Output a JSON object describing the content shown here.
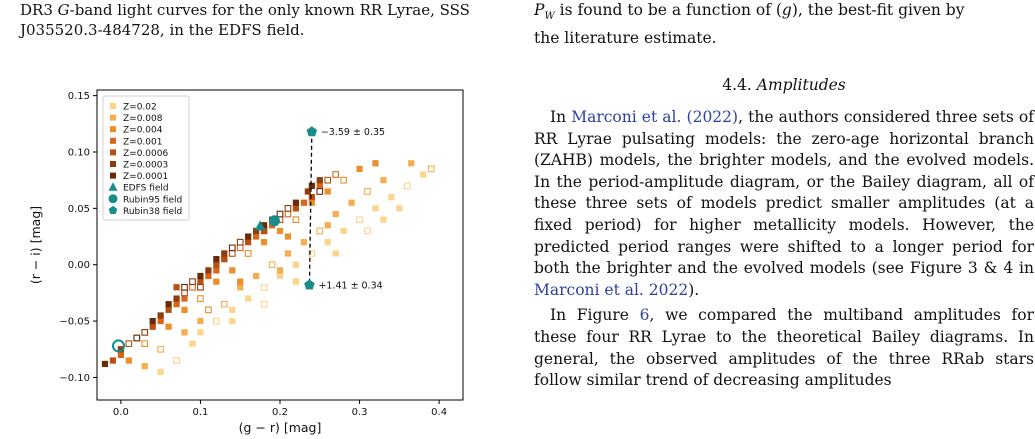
{
  "left_caption": {
    "line1_a": "DR3 ",
    "line1_g": "G",
    "line1_b": "-band light curves for the only known RR Lyrae, SSS",
    "line2": "J035520.3-484728, in the EDFS field."
  },
  "right_top": {
    "line1_a": "P",
    "line1_b": "is found to be a function of (",
    "line1_c": "), the best-fit given by",
    "line2": "the literature estimate."
  },
  "section": {
    "number": "4.4.",
    "title": "Amplitudes"
  },
  "paragraph1": {
    "cite1": "Marconi et al. (2022)",
    "text1": ", the authors considered three sets of RR Lyrae pulsating models: the zero-age horizontal branch (ZAHB) models, the brighter models, and the evolved models. In the period-amplitude diagram, or the Bailey diagram, all of these three sets of models predict smaller amplitudes (at a fixed period) for higher metallicity models. However, the predicted period ranges were shifted to a longer period for both the brighter and the evolved models (see Figure 3 & 4 in ",
    "cite2": "Marconi et al. 2022",
    "text2": ").",
    "prefix": "In "
  },
  "paragraph2": {
    "prefix": "In Figure ",
    "fig": "6",
    "text": ", we compared the multiband amplitudes for these four RR Lyrae to the theoretical Bailey diagrams. In general, the observed amplitudes of the three RRab stars follow similar trend of decreasing amplitudes"
  },
  "chart_data": {
    "type": "scatter",
    "xlabel": "(g − r) [mag]",
    "ylabel": "(r − i) [mag]",
    "xlim": [
      -0.03,
      0.43
    ],
    "ylim": [
      -0.12,
      0.155
    ],
    "xticks": [
      "0.0",
      "0.1",
      "0.2",
      "0.3",
      "0.4"
    ],
    "yticks": [
      "−0.10",
      "−0.05",
      "0.00",
      "0.05",
      "0.10",
      "0.15"
    ],
    "ytick_values": [
      -0.1,
      -0.05,
      0.0,
      0.05,
      0.1,
      0.15
    ],
    "xtick_values": [
      0.0,
      0.1,
      0.2,
      0.3,
      0.4
    ],
    "legend": {
      "placement": "top-left",
      "entries": [
        {
          "label": "Z=0.02",
          "marker": "square",
          "color": "#fcd48a"
        },
        {
          "label": "Z=0.008",
          "marker": "square",
          "color": "#f5ad4f"
        },
        {
          "label": "Z=0.004",
          "marker": "square",
          "color": "#ec8f2b"
        },
        {
          "label": "Z=0.001",
          "marker": "square",
          "color": "#d8661a"
        },
        {
          "label": "Z=0.0006",
          "marker": "square",
          "color": "#b8500f"
        },
        {
          "label": "Z=0.0003",
          "marker": "square",
          "color": "#8f3c0c"
        },
        {
          "label": "Z=0.0001",
          "marker": "square",
          "color": "#6a2a0a"
        },
        {
          "label": "EDFS field",
          "marker": "triangle",
          "color": "#1a8c8c"
        },
        {
          "label": "Rubin95 field",
          "marker": "circle",
          "color": "#1a8c8c"
        },
        {
          "label": "Rubin38 field",
          "marker": "pentagon",
          "color": "#1a8c8c"
        }
      ]
    },
    "series": [
      {
        "name": "Z=0.02",
        "color": "#fcd48a",
        "points": [
          [
            0.05,
            -0.095
          ],
          [
            0.07,
            -0.085
          ],
          [
            0.09,
            -0.07
          ],
          [
            0.1,
            -0.06
          ],
          [
            0.12,
            -0.05
          ],
          [
            0.14,
            -0.04
          ],
          [
            0.16,
            -0.03
          ],
          [
            0.18,
            -0.02
          ],
          [
            0.2,
            -0.01
          ],
          [
            0.22,
            0.0
          ],
          [
            0.24,
            0.01
          ],
          [
            0.26,
            0.02
          ],
          [
            0.28,
            0.03
          ],
          [
            0.3,
            0.04
          ],
          [
            0.32,
            0.05
          ],
          [
            0.34,
            0.06
          ],
          [
            0.36,
            0.07
          ],
          [
            0.38,
            0.08
          ],
          [
            0.14,
            -0.05
          ],
          [
            0.18,
            -0.035
          ],
          [
            0.22,
            -0.015
          ],
          [
            0.27,
            0.01
          ],
          [
            0.31,
            0.03
          ],
          [
            0.35,
            0.05
          ],
          [
            0.33,
            0.04
          ]
        ]
      },
      {
        "name": "Z=0.008",
        "color": "#f5ad4f",
        "points": [
          [
            0.03,
            -0.09
          ],
          [
            0.05,
            -0.075
          ],
          [
            0.08,
            -0.06
          ],
          [
            0.1,
            -0.05
          ],
          [
            0.13,
            -0.035
          ],
          [
            0.15,
            -0.02
          ],
          [
            0.17,
            -0.01
          ],
          [
            0.19,
            0.0
          ],
          [
            0.21,
            0.01
          ],
          [
            0.23,
            0.02
          ],
          [
            0.25,
            0.03
          ],
          [
            0.27,
            0.045
          ],
          [
            0.29,
            0.055
          ],
          [
            0.31,
            0.065
          ],
          [
            0.33,
            0.075
          ],
          [
            0.365,
            0.09
          ],
          [
            0.39,
            0.085
          ],
          [
            0.2,
            -0.005
          ],
          [
            0.26,
            0.035
          ]
        ]
      },
      {
        "name": "Z=0.004",
        "color": "#ec8f2b",
        "points": [
          [
            0.01,
            -0.085
          ],
          [
            0.03,
            -0.07
          ],
          [
            0.06,
            -0.055
          ],
          [
            0.08,
            -0.04
          ],
          [
            0.1,
            -0.03
          ],
          [
            0.12,
            -0.015
          ],
          [
            0.14,
            -0.005
          ],
          [
            0.16,
            0.01
          ],
          [
            0.18,
            0.02
          ],
          [
            0.2,
            0.03
          ],
          [
            0.22,
            0.04
          ],
          [
            0.24,
            0.055
          ],
          [
            0.26,
            0.065
          ],
          [
            0.28,
            0.075
          ],
          [
            0.3,
            0.085
          ],
          [
            0.32,
            0.09
          ],
          [
            0.11,
            -0.04
          ],
          [
            0.15,
            -0.015
          ],
          [
            0.21,
            0.025
          ]
        ]
      },
      {
        "name": "Z=0.001",
        "color": "#d8661a",
        "points": [
          [
            0.0,
            -0.08
          ],
          [
            0.02,
            -0.065
          ],
          [
            0.05,
            -0.05
          ],
          [
            0.07,
            -0.035
          ],
          [
            0.09,
            -0.02
          ],
          [
            0.11,
            -0.01
          ],
          [
            0.13,
            0.005
          ],
          [
            0.15,
            0.015
          ],
          [
            0.17,
            0.025
          ],
          [
            0.19,
            0.035
          ],
          [
            0.21,
            0.045
          ],
          [
            0.23,
            0.055
          ],
          [
            0.25,
            0.07
          ],
          [
            0.27,
            0.08
          ],
          [
            0.08,
            -0.03
          ],
          [
            0.12,
            -0.005
          ],
          [
            0.18,
            0.03
          ]
        ]
      },
      {
        "name": "Z=0.0006",
        "color": "#b8500f",
        "points": [
          [
            -0.01,
            -0.085
          ],
          [
            0.01,
            -0.07
          ],
          [
            0.04,
            -0.055
          ],
          [
            0.06,
            -0.04
          ],
          [
            0.08,
            -0.025
          ],
          [
            0.1,
            -0.015
          ],
          [
            0.12,
            0.0
          ],
          [
            0.14,
            0.01
          ],
          [
            0.16,
            0.02
          ],
          [
            0.18,
            0.03
          ],
          [
            0.2,
            0.04
          ],
          [
            0.22,
            0.05
          ],
          [
            0.24,
            0.06
          ],
          [
            0.26,
            0.075
          ],
          [
            0.07,
            -0.02
          ],
          [
            0.13,
            0.005
          ]
        ]
      },
      {
        "name": "Z=0.0003",
        "color": "#8f3c0c",
        "points": [
          [
            0.0,
            -0.075
          ],
          [
            0.03,
            -0.06
          ],
          [
            0.05,
            -0.045
          ],
          [
            0.07,
            -0.03
          ],
          [
            0.09,
            -0.015
          ],
          [
            0.11,
            -0.005
          ],
          [
            0.13,
            0.01
          ],
          [
            0.15,
            0.02
          ],
          [
            0.17,
            0.03
          ],
          [
            0.19,
            0.04
          ],
          [
            0.21,
            0.05
          ],
          [
            0.235,
            0.065
          ],
          [
            0.25,
            0.075
          ],
          [
            0.1,
            -0.02
          ]
        ]
      },
      {
        "name": "Z=0.0001",
        "color": "#6a2a0a",
        "points": [
          [
            -0.02,
            -0.088
          ],
          [
            0.02,
            -0.065
          ],
          [
            0.04,
            -0.05
          ],
          [
            0.06,
            -0.035
          ],
          [
            0.08,
            -0.02
          ],
          [
            0.1,
            -0.01
          ],
          [
            0.12,
            0.005
          ],
          [
            0.14,
            0.015
          ],
          [
            0.16,
            0.025
          ],
          [
            0.18,
            0.035
          ],
          [
            0.2,
            0.045
          ],
          [
            0.22,
            0.055
          ],
          [
            0.24,
            0.07
          ],
          [
            0.25,
            0.065
          ]
        ]
      }
    ],
    "observed": [
      {
        "name": "EDFS field",
        "marker": "triangle",
        "color": "#1a8c8c",
        "x": 0.175,
        "y": 0.034
      },
      {
        "name": "Rubin95 field",
        "marker": "circle-filled",
        "color": "#1a8c8c",
        "x": 0.193,
        "y": 0.039
      },
      {
        "name": "Rubin95 field",
        "marker": "circle-open",
        "color": "#1a8c8c",
        "x": -0.003,
        "y": -0.072
      },
      {
        "name": "Rubin38 field",
        "marker": "pentagon",
        "color": "#1a8c8c",
        "x": 0.24,
        "y": 0.118
      },
      {
        "name": "Rubin38 field",
        "marker": "pentagon",
        "color": "#1a8c8c",
        "x": 0.237,
        "y": -0.018
      }
    ],
    "annotations": [
      {
        "text": "−3.59 ± 0.35",
        "x": 0.24,
        "y": 0.118
      },
      {
        "text": "+1.41 ± 0.34",
        "x": 0.237,
        "y": -0.018
      }
    ]
  }
}
